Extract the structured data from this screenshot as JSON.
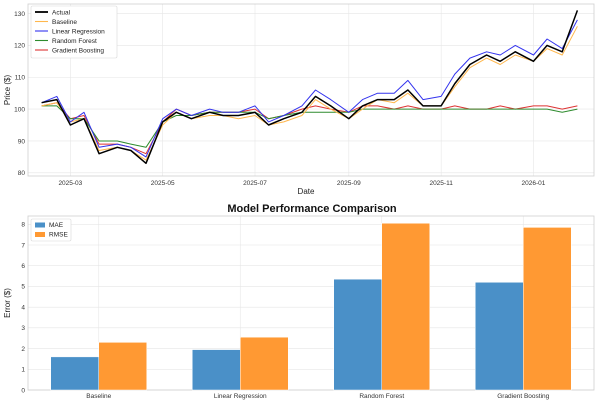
{
  "chart_data": [
    {
      "type": "line",
      "title": "",
      "xlabel": "Date",
      "ylabel": "Price ($)",
      "ylim": [
        79,
        133
      ],
      "xlim": [
        "2025-02-01",
        "2026-02-10"
      ],
      "yticks": [
        80,
        90,
        100,
        110,
        120,
        130
      ],
      "xticks": [
        {
          "date": "2025-03-01",
          "label": "2025-03"
        },
        {
          "date": "2025-05-01",
          "label": "2025-05"
        },
        {
          "date": "2025-07-01",
          "label": "2025-07"
        },
        {
          "date": "2025-09-01",
          "label": "2025-09"
        },
        {
          "date": "2025-11-01",
          "label": "2025-11"
        },
        {
          "date": "2026-01-01",
          "label": "2026-01"
        }
      ],
      "grid": true,
      "legend_position": "top-left",
      "x": [
        "2025-02-10",
        "2025-02-20",
        "2025-03-01",
        "2025-03-10",
        "2025-03-20",
        "2025-04-01",
        "2025-04-10",
        "2025-04-20",
        "2025-05-01",
        "2025-05-10",
        "2025-05-20",
        "2025-06-01",
        "2025-06-10",
        "2025-06-20",
        "2025-07-01",
        "2025-07-10",
        "2025-07-20",
        "2025-08-01",
        "2025-08-10",
        "2025-08-20",
        "2025-09-01",
        "2025-09-10",
        "2025-09-20",
        "2025-10-01",
        "2025-10-10",
        "2025-10-20",
        "2025-11-01",
        "2025-11-10",
        "2025-11-20",
        "2025-12-01",
        "2025-12-10",
        "2025-12-20",
        "2026-01-01",
        "2026-01-10",
        "2026-01-20",
        "2026-01-30"
      ],
      "series": [
        {
          "name": "Actual",
          "color": "#000000",
          "width": 1.5,
          "values": [
            102,
            103,
            95,
            97,
            86,
            88,
            87,
            83,
            96,
            99,
            97,
            99,
            98,
            98,
            99,
            95,
            97,
            99,
            104,
            101,
            97,
            101,
            103,
            103,
            106,
            101,
            101,
            108,
            114,
            117,
            115,
            118,
            115,
            120,
            118,
            131
          ]
        },
        {
          "name": "Baseline",
          "color": "#ffb74d",
          "width": 1,
          "values": [
            101,
            102,
            96,
            97,
            87,
            88,
            87,
            84,
            95,
            99,
            97,
            98,
            98,
            97,
            98,
            95,
            96,
            98,
            103,
            100,
            97,
            100,
            103,
            102,
            105,
            101,
            101,
            107,
            113,
            116,
            114,
            117,
            115,
            119,
            117,
            126
          ]
        },
        {
          "name": "Linear Regression",
          "color": "#3333ee",
          "width": 1,
          "values": [
            102,
            104,
            96,
            99,
            88,
            89,
            88,
            85,
            97,
            100,
            98,
            100,
            99,
            99,
            101,
            96,
            98,
            101,
            106,
            103,
            99,
            103,
            105,
            105,
            109,
            103,
            104,
            111,
            116,
            118,
            117,
            120,
            117,
            122,
            119,
            128
          ]
        },
        {
          "name": "Random Forest",
          "color": "#2e8b2e",
          "width": 1,
          "values": [
            101,
            101,
            97,
            97,
            90,
            90,
            89,
            88,
            96,
            98,
            98,
            99,
            99,
            99,
            99,
            97,
            98,
            99,
            99,
            99,
            99,
            100,
            100,
            100,
            100,
            100,
            100,
            100,
            100,
            100,
            100,
            100,
            100,
            100,
            99,
            100
          ]
        },
        {
          "name": "Gradient Boosting",
          "color": "#dd3333",
          "width": 1,
          "values": [
            101,
            102,
            97,
            98,
            89,
            89,
            88,
            86,
            96,
            100,
            98,
            99,
            99,
            99,
            100,
            97,
            98,
            100,
            101,
            100,
            99,
            101,
            101,
            100,
            101,
            100,
            100,
            101,
            100,
            100,
            101,
            100,
            101,
            101,
            100,
            101
          ]
        }
      ]
    },
    {
      "type": "bar",
      "title": "Model Performance Comparison",
      "xlabel": "",
      "ylabel": "Error ($)",
      "ylim": [
        0,
        8.4
      ],
      "yticks": [
        0,
        1,
        2,
        3,
        4,
        5,
        6,
        7,
        8
      ],
      "grid": true,
      "legend_position": "top-left",
      "categories": [
        "Baseline",
        "Linear Regression",
        "Random Forest",
        "Gradient Boosting"
      ],
      "series": [
        {
          "name": "MAE",
          "color": "#4a90c8",
          "values": [
            1.6,
            1.95,
            5.35,
            5.2
          ]
        },
        {
          "name": "RMSE",
          "color": "#ff9933",
          "values": [
            2.3,
            2.55,
            8.05,
            7.85
          ]
        }
      ]
    }
  ]
}
